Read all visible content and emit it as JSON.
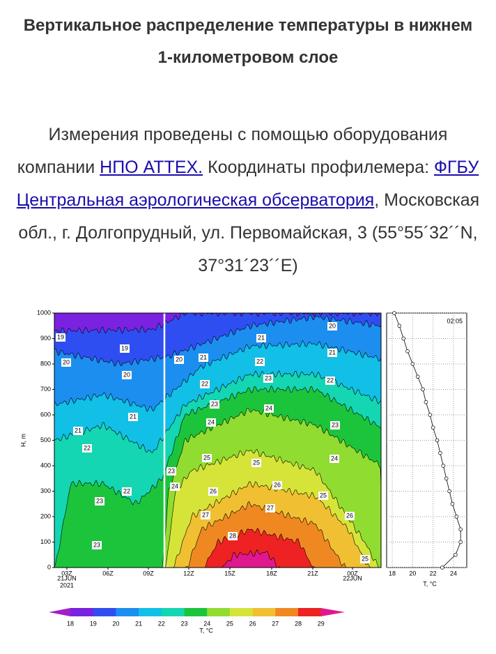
{
  "header": {
    "title": "Вертикальное распределение температуры в нижнем 1-километровом слое"
  },
  "intro": {
    "text_before": "Измерения проведены с помощью оборудования компании ",
    "link1": "НПО АТТЕХ.",
    "text_middle": "  Координаты профилемера: ",
    "link2": "ФГБУ Центральная аэрологическая обсерватория",
    "text_after": ", Московская обл., г. Долгопрудный, ул. Первомайская, 3 (55°55´32´´N, 37°31´23´´E)"
  },
  "figure": {
    "main": {
      "ylabel": "H, m",
      "ylim": [
        0,
        1000
      ],
      "yticks": [
        0,
        100,
        200,
        300,
        400,
        500,
        600,
        700,
        800,
        900,
        1000
      ],
      "xtick_labels": [
        "03Z",
        "06Z",
        "09Z",
        "12Z",
        "15Z",
        "18Z",
        "21Z",
        "00Z"
      ],
      "date_labels": [
        "21JUN",
        "2021",
        "22JUN"
      ],
      "contour_labels": [
        19,
        20,
        19,
        20,
        21,
        21,
        22,
        23,
        22,
        23,
        20,
        21,
        21,
        20,
        21,
        22,
        22,
        23,
        22,
        23,
        24,
        24,
        23,
        25,
        25,
        24,
        23,
        24,
        26,
        26,
        25,
        27,
        27,
        26,
        28,
        25
      ]
    },
    "profile": {
      "time": "02:05",
      "xlabel": "T, °C",
      "xlim": [
        17.45,
        25.3
      ],
      "xticks": [
        18,
        20,
        22,
        24
      ],
      "ylim": [
        0,
        1000
      ],
      "heights": [
        0,
        50,
        100,
        150,
        200,
        250,
        300,
        350,
        400,
        450,
        500,
        550,
        600,
        650,
        700,
        750,
        800,
        850,
        900,
        950,
        1000
      ],
      "temperatures": [
        22.9,
        24.2,
        24.7,
        24.7,
        24.3,
        23.9,
        23.6,
        23.3,
        23.0,
        22.7,
        22.4,
        22.0,
        21.7,
        21.3,
        21.0,
        20.5,
        20.0,
        19.5,
        19.1,
        18.7,
        18.2
      ]
    },
    "colorbar": {
      "label": "T, °C",
      "ticks": [
        18,
        19,
        20,
        21,
        22,
        23,
        24,
        25,
        26,
        27,
        28,
        29
      ],
      "colors": [
        "#a21fc8",
        "#7a22e0",
        "#2f4ef2",
        "#1c8ef0",
        "#12bfe6",
        "#14d6b2",
        "#1cc43c",
        "#90dc30",
        "#d6e43a",
        "#f0c032",
        "#f08822",
        "#ee2222",
        "#e01890"
      ]
    }
  }
}
